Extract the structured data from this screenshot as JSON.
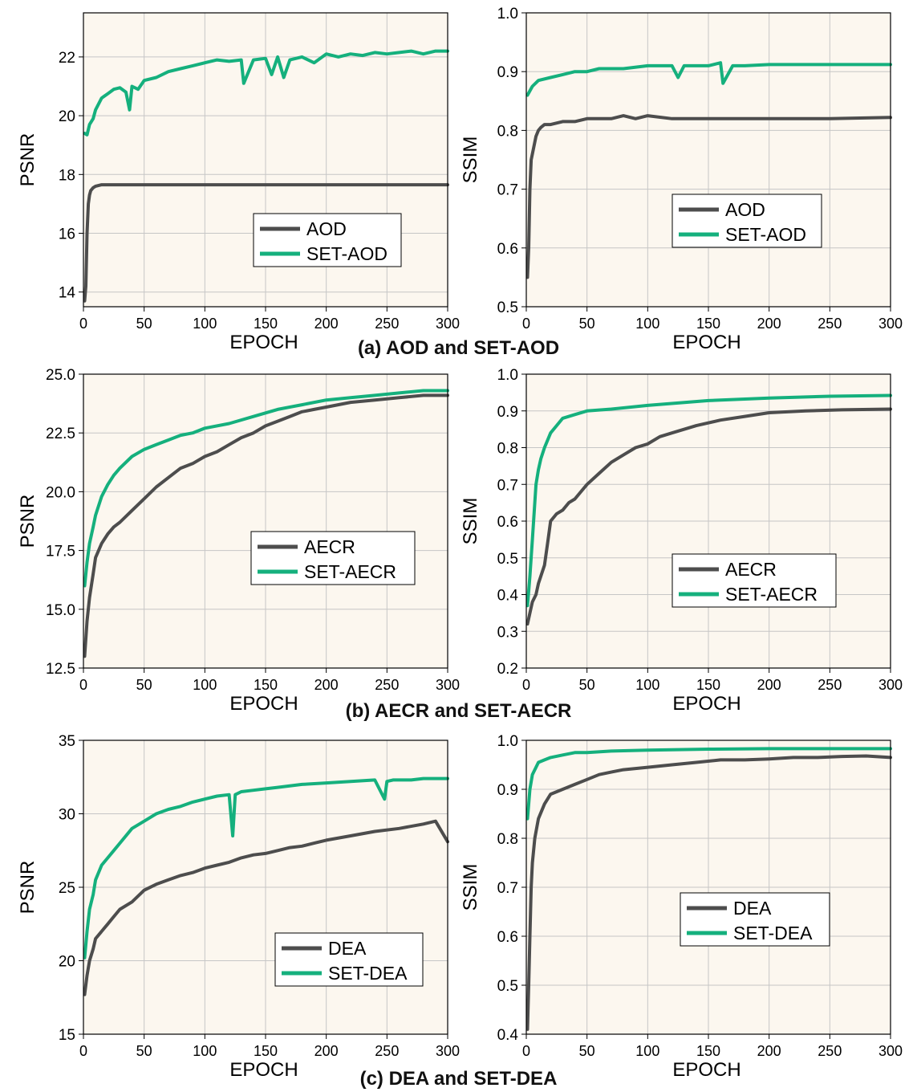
{
  "colors": {
    "baseline": "#4d4d4d",
    "set": "#15b07d",
    "plot_bg": "#fcf7ef",
    "grid": "#c6c6c6"
  },
  "captions": [
    "(a) AOD and SET-AOD",
    "(b) AECR and SET-AECR",
    "(c) DEA and SET-DEA"
  ],
  "chart_data": [
    {
      "type": "line",
      "xlabel": "EPOCH",
      "ylabel": "PSNR",
      "xlim": [
        0,
        300
      ],
      "ylim": [
        13.5,
        23.5
      ],
      "xticks": [
        0,
        50,
        100,
        150,
        200,
        250,
        300
      ],
      "yticks": [
        14,
        16,
        18,
        20,
        22
      ],
      "grid": true,
      "legend": "bottom-right",
      "series": [
        {
          "name": "AOD",
          "color": "#4d4d4d",
          "x": [
            1,
            2,
            3,
            4,
            5,
            6,
            8,
            10,
            15,
            20,
            50,
            100,
            150,
            200,
            250,
            300
          ],
          "y": [
            13.7,
            14.2,
            16.0,
            17.0,
            17.3,
            17.45,
            17.55,
            17.6,
            17.65,
            17.65,
            17.65,
            17.65,
            17.65,
            17.65,
            17.65,
            17.65
          ]
        },
        {
          "name": "SET-AOD",
          "color": "#15b07d",
          "x": [
            1,
            3,
            5,
            8,
            10,
            15,
            20,
            25,
            30,
            35,
            38,
            40,
            45,
            50,
            60,
            70,
            80,
            90,
            100,
            110,
            120,
            130,
            132,
            140,
            150,
            155,
            160,
            165,
            170,
            180,
            190,
            200,
            210,
            220,
            230,
            240,
            250,
            260,
            270,
            280,
            290,
            300
          ],
          "y": [
            19.4,
            19.35,
            19.7,
            19.9,
            20.2,
            20.6,
            20.75,
            20.9,
            20.95,
            20.8,
            20.2,
            21.0,
            20.9,
            21.2,
            21.3,
            21.5,
            21.6,
            21.7,
            21.8,
            21.9,
            21.85,
            21.9,
            21.1,
            21.9,
            21.95,
            21.4,
            22.0,
            21.3,
            21.9,
            22.0,
            21.8,
            22.1,
            22.0,
            22.1,
            22.05,
            22.15,
            22.1,
            22.15,
            22.2,
            22.1,
            22.2,
            22.2
          ]
        }
      ]
    },
    {
      "type": "line",
      "xlabel": "EPOCH",
      "ylabel": "SSIM",
      "xlim": [
        0,
        300
      ],
      "ylim": [
        0.5,
        1.0
      ],
      "xticks": [
        0,
        50,
        100,
        150,
        200,
        250,
        300
      ],
      "yticks": [
        0.5,
        0.6,
        0.7,
        0.8,
        0.9,
        1.0
      ],
      "grid": true,
      "legend": "bottom-right",
      "series": [
        {
          "name": "AOD",
          "color": "#4d4d4d",
          "x": [
            1,
            2,
            3,
            4,
            5,
            6,
            8,
            10,
            12,
            15,
            20,
            30,
            40,
            50,
            60,
            70,
            80,
            90,
            100,
            120,
            150,
            200,
            250,
            300
          ],
          "y": [
            0.55,
            0.6,
            0.7,
            0.75,
            0.76,
            0.77,
            0.79,
            0.8,
            0.805,
            0.81,
            0.81,
            0.815,
            0.815,
            0.82,
            0.82,
            0.82,
            0.825,
            0.82,
            0.825,
            0.82,
            0.82,
            0.82,
            0.82,
            0.822
          ]
        },
        {
          "name": "SET-AOD",
          "color": "#15b07d",
          "x": [
            1,
            5,
            10,
            20,
            30,
            40,
            50,
            60,
            80,
            100,
            120,
            125,
            130,
            140,
            150,
            160,
            162,
            170,
            180,
            200,
            250,
            300
          ],
          "y": [
            0.86,
            0.875,
            0.885,
            0.89,
            0.895,
            0.9,
            0.9,
            0.905,
            0.905,
            0.91,
            0.91,
            0.89,
            0.91,
            0.91,
            0.91,
            0.915,
            0.88,
            0.91,
            0.91,
            0.912,
            0.912,
            0.912
          ]
        }
      ]
    },
    {
      "type": "line",
      "xlabel": "EPOCH",
      "ylabel": "PSNR",
      "xlim": [
        0,
        300
      ],
      "ylim": [
        12.5,
        25.0
      ],
      "xticks": [
        0,
        50,
        100,
        150,
        200,
        250,
        300
      ],
      "yticks": [
        12.5,
        15.0,
        17.5,
        20.0,
        22.5,
        25.0
      ],
      "grid": true,
      "legend": "bottom-right",
      "series": [
        {
          "name": "AECR",
          "color": "#4d4d4d",
          "x": [
            1,
            3,
            5,
            8,
            10,
            15,
            20,
            25,
            30,
            40,
            50,
            60,
            70,
            80,
            90,
            100,
            110,
            120,
            130,
            140,
            150,
            160,
            170,
            180,
            190,
            200,
            220,
            240,
            260,
            280,
            300
          ],
          "y": [
            13.0,
            14.5,
            15.5,
            16.5,
            17.2,
            17.8,
            18.2,
            18.5,
            18.7,
            19.2,
            19.7,
            20.2,
            20.6,
            21.0,
            21.2,
            21.5,
            21.7,
            22.0,
            22.3,
            22.5,
            22.8,
            23.0,
            23.2,
            23.4,
            23.5,
            23.6,
            23.8,
            23.9,
            24.0,
            24.1,
            24.1
          ]
        },
        {
          "name": "SET-AECR",
          "color": "#15b07d",
          "x": [
            1,
            3,
            5,
            8,
            10,
            15,
            20,
            25,
            30,
            40,
            50,
            60,
            70,
            80,
            90,
            100,
            120,
            140,
            160,
            180,
            200,
            220,
            240,
            260,
            280,
            300
          ],
          "y": [
            16.0,
            17.0,
            17.8,
            18.5,
            19.0,
            19.8,
            20.3,
            20.7,
            21.0,
            21.5,
            21.8,
            22.0,
            22.2,
            22.4,
            22.5,
            22.7,
            22.9,
            23.2,
            23.5,
            23.7,
            23.9,
            24.0,
            24.1,
            24.2,
            24.3,
            24.3
          ]
        }
      ]
    },
    {
      "type": "line",
      "xlabel": "EPOCH",
      "ylabel": "SSIM",
      "xlim": [
        0,
        300
      ],
      "ylim": [
        0.2,
        1.0
      ],
      "xticks": [
        0,
        50,
        100,
        150,
        200,
        250,
        300
      ],
      "yticks": [
        0.2,
        0.3,
        0.4,
        0.5,
        0.6,
        0.7,
        0.8,
        0.9,
        1.0
      ],
      "grid": true,
      "legend": "bottom-right",
      "series": [
        {
          "name": "AECR",
          "color": "#4d4d4d",
          "x": [
            1,
            3,
            5,
            8,
            10,
            15,
            18,
            20,
            25,
            30,
            35,
            40,
            45,
            50,
            60,
            70,
            80,
            90,
            100,
            110,
            120,
            140,
            160,
            180,
            200,
            230,
            260,
            300
          ],
          "y": [
            0.32,
            0.35,
            0.38,
            0.4,
            0.43,
            0.48,
            0.55,
            0.6,
            0.62,
            0.63,
            0.65,
            0.66,
            0.68,
            0.7,
            0.73,
            0.76,
            0.78,
            0.8,
            0.81,
            0.83,
            0.84,
            0.86,
            0.875,
            0.885,
            0.895,
            0.9,
            0.903,
            0.905
          ]
        },
        {
          "name": "SET-AECR",
          "color": "#15b07d",
          "x": [
            1,
            3,
            5,
            7,
            8,
            10,
            12,
            15,
            20,
            25,
            30,
            40,
            50,
            70,
            100,
            150,
            200,
            250,
            300
          ],
          "y": [
            0.37,
            0.45,
            0.55,
            0.65,
            0.7,
            0.74,
            0.77,
            0.8,
            0.84,
            0.86,
            0.88,
            0.89,
            0.9,
            0.905,
            0.915,
            0.928,
            0.935,
            0.94,
            0.942
          ]
        }
      ]
    },
    {
      "type": "line",
      "xlabel": "EPOCH",
      "ylabel": "PSNR",
      "xlim": [
        0,
        300
      ],
      "ylim": [
        15,
        35
      ],
      "xticks": [
        0,
        50,
        100,
        150,
        200,
        250,
        300
      ],
      "yticks": [
        15,
        20,
        25,
        30,
        35
      ],
      "grid": true,
      "legend": "bottom-right",
      "series": [
        {
          "name": "DEA",
          "color": "#4d4d4d",
          "x": [
            1,
            3,
            5,
            8,
            10,
            15,
            20,
            25,
            30,
            40,
            50,
            60,
            70,
            80,
            90,
            100,
            110,
            120,
            130,
            140,
            150,
            160,
            170,
            180,
            190,
            200,
            220,
            240,
            260,
            280,
            290,
            300
          ],
          "y": [
            17.7,
            19.0,
            20.0,
            20.8,
            21.5,
            22.0,
            22.5,
            23.0,
            23.5,
            24.0,
            24.8,
            25.2,
            25.5,
            25.8,
            26.0,
            26.3,
            26.5,
            26.7,
            27.0,
            27.2,
            27.3,
            27.5,
            27.7,
            27.8,
            28.0,
            28.2,
            28.5,
            28.8,
            29.0,
            29.3,
            29.5,
            28.1
          ]
        },
        {
          "name": "SET-DEA",
          "color": "#15b07d",
          "x": [
            1,
            3,
            5,
            8,
            10,
            15,
            20,
            25,
            30,
            40,
            50,
            60,
            70,
            80,
            90,
            100,
            110,
            120,
            123,
            125,
            130,
            140,
            150,
            160,
            180,
            200,
            220,
            240,
            248,
            250,
            255,
            260,
            270,
            280,
            290,
            300
          ],
          "y": [
            20.2,
            22.0,
            23.5,
            24.5,
            25.5,
            26.5,
            27.0,
            27.5,
            28.0,
            29.0,
            29.5,
            30.0,
            30.3,
            30.5,
            30.8,
            31.0,
            31.2,
            31.3,
            28.5,
            31.3,
            31.5,
            31.6,
            31.7,
            31.8,
            32.0,
            32.1,
            32.2,
            32.3,
            31.0,
            32.2,
            32.3,
            32.3,
            32.3,
            32.4,
            32.4,
            32.4
          ]
        }
      ]
    },
    {
      "type": "line",
      "xlabel": "EPOCH",
      "ylabel": "SSIM",
      "xlim": [
        0,
        300
      ],
      "ylim": [
        0.4,
        1.0
      ],
      "xticks": [
        0,
        50,
        100,
        150,
        200,
        250,
        300
      ],
      "yticks": [
        0.4,
        0.5,
        0.6,
        0.7,
        0.8,
        0.9,
        1.0
      ],
      "grid": true,
      "legend": "bottom-right",
      "series": [
        {
          "name": "DEA",
          "color": "#4d4d4d",
          "x": [
            1,
            2,
            3,
            4,
            5,
            7,
            10,
            15,
            20,
            30,
            40,
            50,
            60,
            70,
            80,
            100,
            120,
            140,
            160,
            180,
            200,
            220,
            240,
            260,
            280,
            300
          ],
          "y": [
            0.41,
            0.5,
            0.6,
            0.7,
            0.75,
            0.8,
            0.84,
            0.87,
            0.89,
            0.9,
            0.91,
            0.92,
            0.93,
            0.935,
            0.94,
            0.945,
            0.95,
            0.955,
            0.96,
            0.96,
            0.962,
            0.965,
            0.965,
            0.967,
            0.968,
            0.965
          ]
        },
        {
          "name": "SET-DEA",
          "color": "#15b07d",
          "x": [
            1,
            3,
            5,
            8,
            10,
            15,
            20,
            30,
            40,
            50,
            70,
            100,
            150,
            200,
            250,
            300
          ],
          "y": [
            0.84,
            0.9,
            0.93,
            0.945,
            0.955,
            0.96,
            0.965,
            0.97,
            0.975,
            0.975,
            0.978,
            0.98,
            0.982,
            0.983,
            0.983,
            0.983
          ]
        }
      ]
    }
  ]
}
